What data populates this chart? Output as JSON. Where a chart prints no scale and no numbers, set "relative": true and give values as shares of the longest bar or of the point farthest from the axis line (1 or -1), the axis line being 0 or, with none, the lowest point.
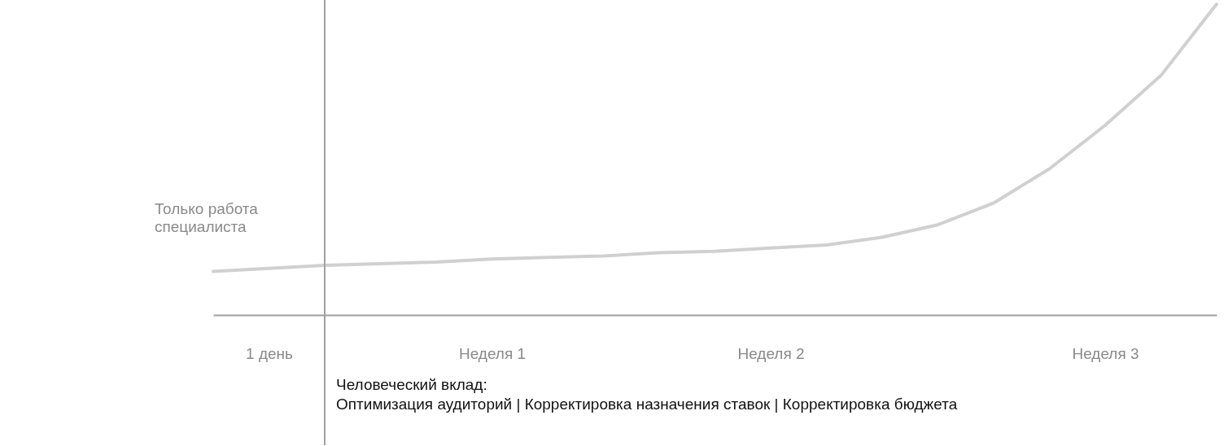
{
  "chart_data": {
    "type": "line",
    "relative": true,
    "categories": [
      null,
      "1 день",
      null,
      null,
      null,
      "Неделя 1",
      null,
      null,
      null,
      null,
      "Неделя 2",
      null,
      null,
      null,
      null,
      null,
      "Неделя 3",
      null,
      null
    ],
    "series": [
      {
        "name": "Только работа специалиста",
        "color": "#d0d0d0",
        "values": [
          0.14,
          0.15,
          0.16,
          0.165,
          0.17,
          0.18,
          0.185,
          0.19,
          0.2,
          0.205,
          0.215,
          0.225,
          0.25,
          0.29,
          0.36,
          0.47,
          0.61,
          0.77,
          1.0
        ]
      }
    ],
    "annotations": [
      "Человеческий вклад:\nОптимизация аудиторий |  Корректировка назначения ставок |  Корректировка бюджета"
    ],
    "legend": false,
    "marker": "none",
    "line_style": "solid"
  }
}
